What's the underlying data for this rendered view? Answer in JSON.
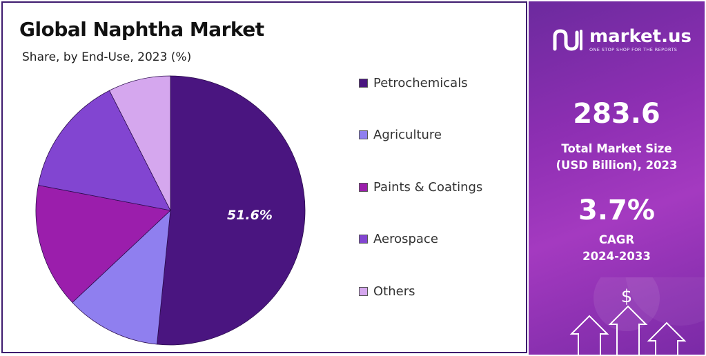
{
  "chart_data": {
    "type": "pie",
    "title": "Global Naphtha Market",
    "subtitle": "Share, by End-Use, 2023 (%)",
    "categories": [
      "Petrochemicals",
      "Agriculture",
      "Paints & Coatings",
      "Aerospace",
      "Others"
    ],
    "values": [
      51.6,
      11.4,
      15.0,
      14.5,
      7.5
    ],
    "colors": [
      "#4a1580",
      "#8f7fef",
      "#9b1eac",
      "#8245d1",
      "#d5a7ee"
    ],
    "data_labels": [
      "51.6%",
      "",
      "",
      "",
      ""
    ],
    "start_angle_deg": 0,
    "direction": "clockwise",
    "legend_position": "right"
  },
  "sidebar": {
    "brand_name": "market.us",
    "brand_tagline": "ONE STOP SHOP FOR THE REPORTS",
    "market_size_value": "283.6",
    "market_size_label_line1": "Total Market Size",
    "market_size_label_line2": "(USD Billion), 2023",
    "cagr_value": "3.7%",
    "cagr_label_line1": "CAGR",
    "cagr_label_line2": "2024-2033",
    "icon_names": [
      "dollar-icon",
      "up-arrow-icon"
    ]
  }
}
